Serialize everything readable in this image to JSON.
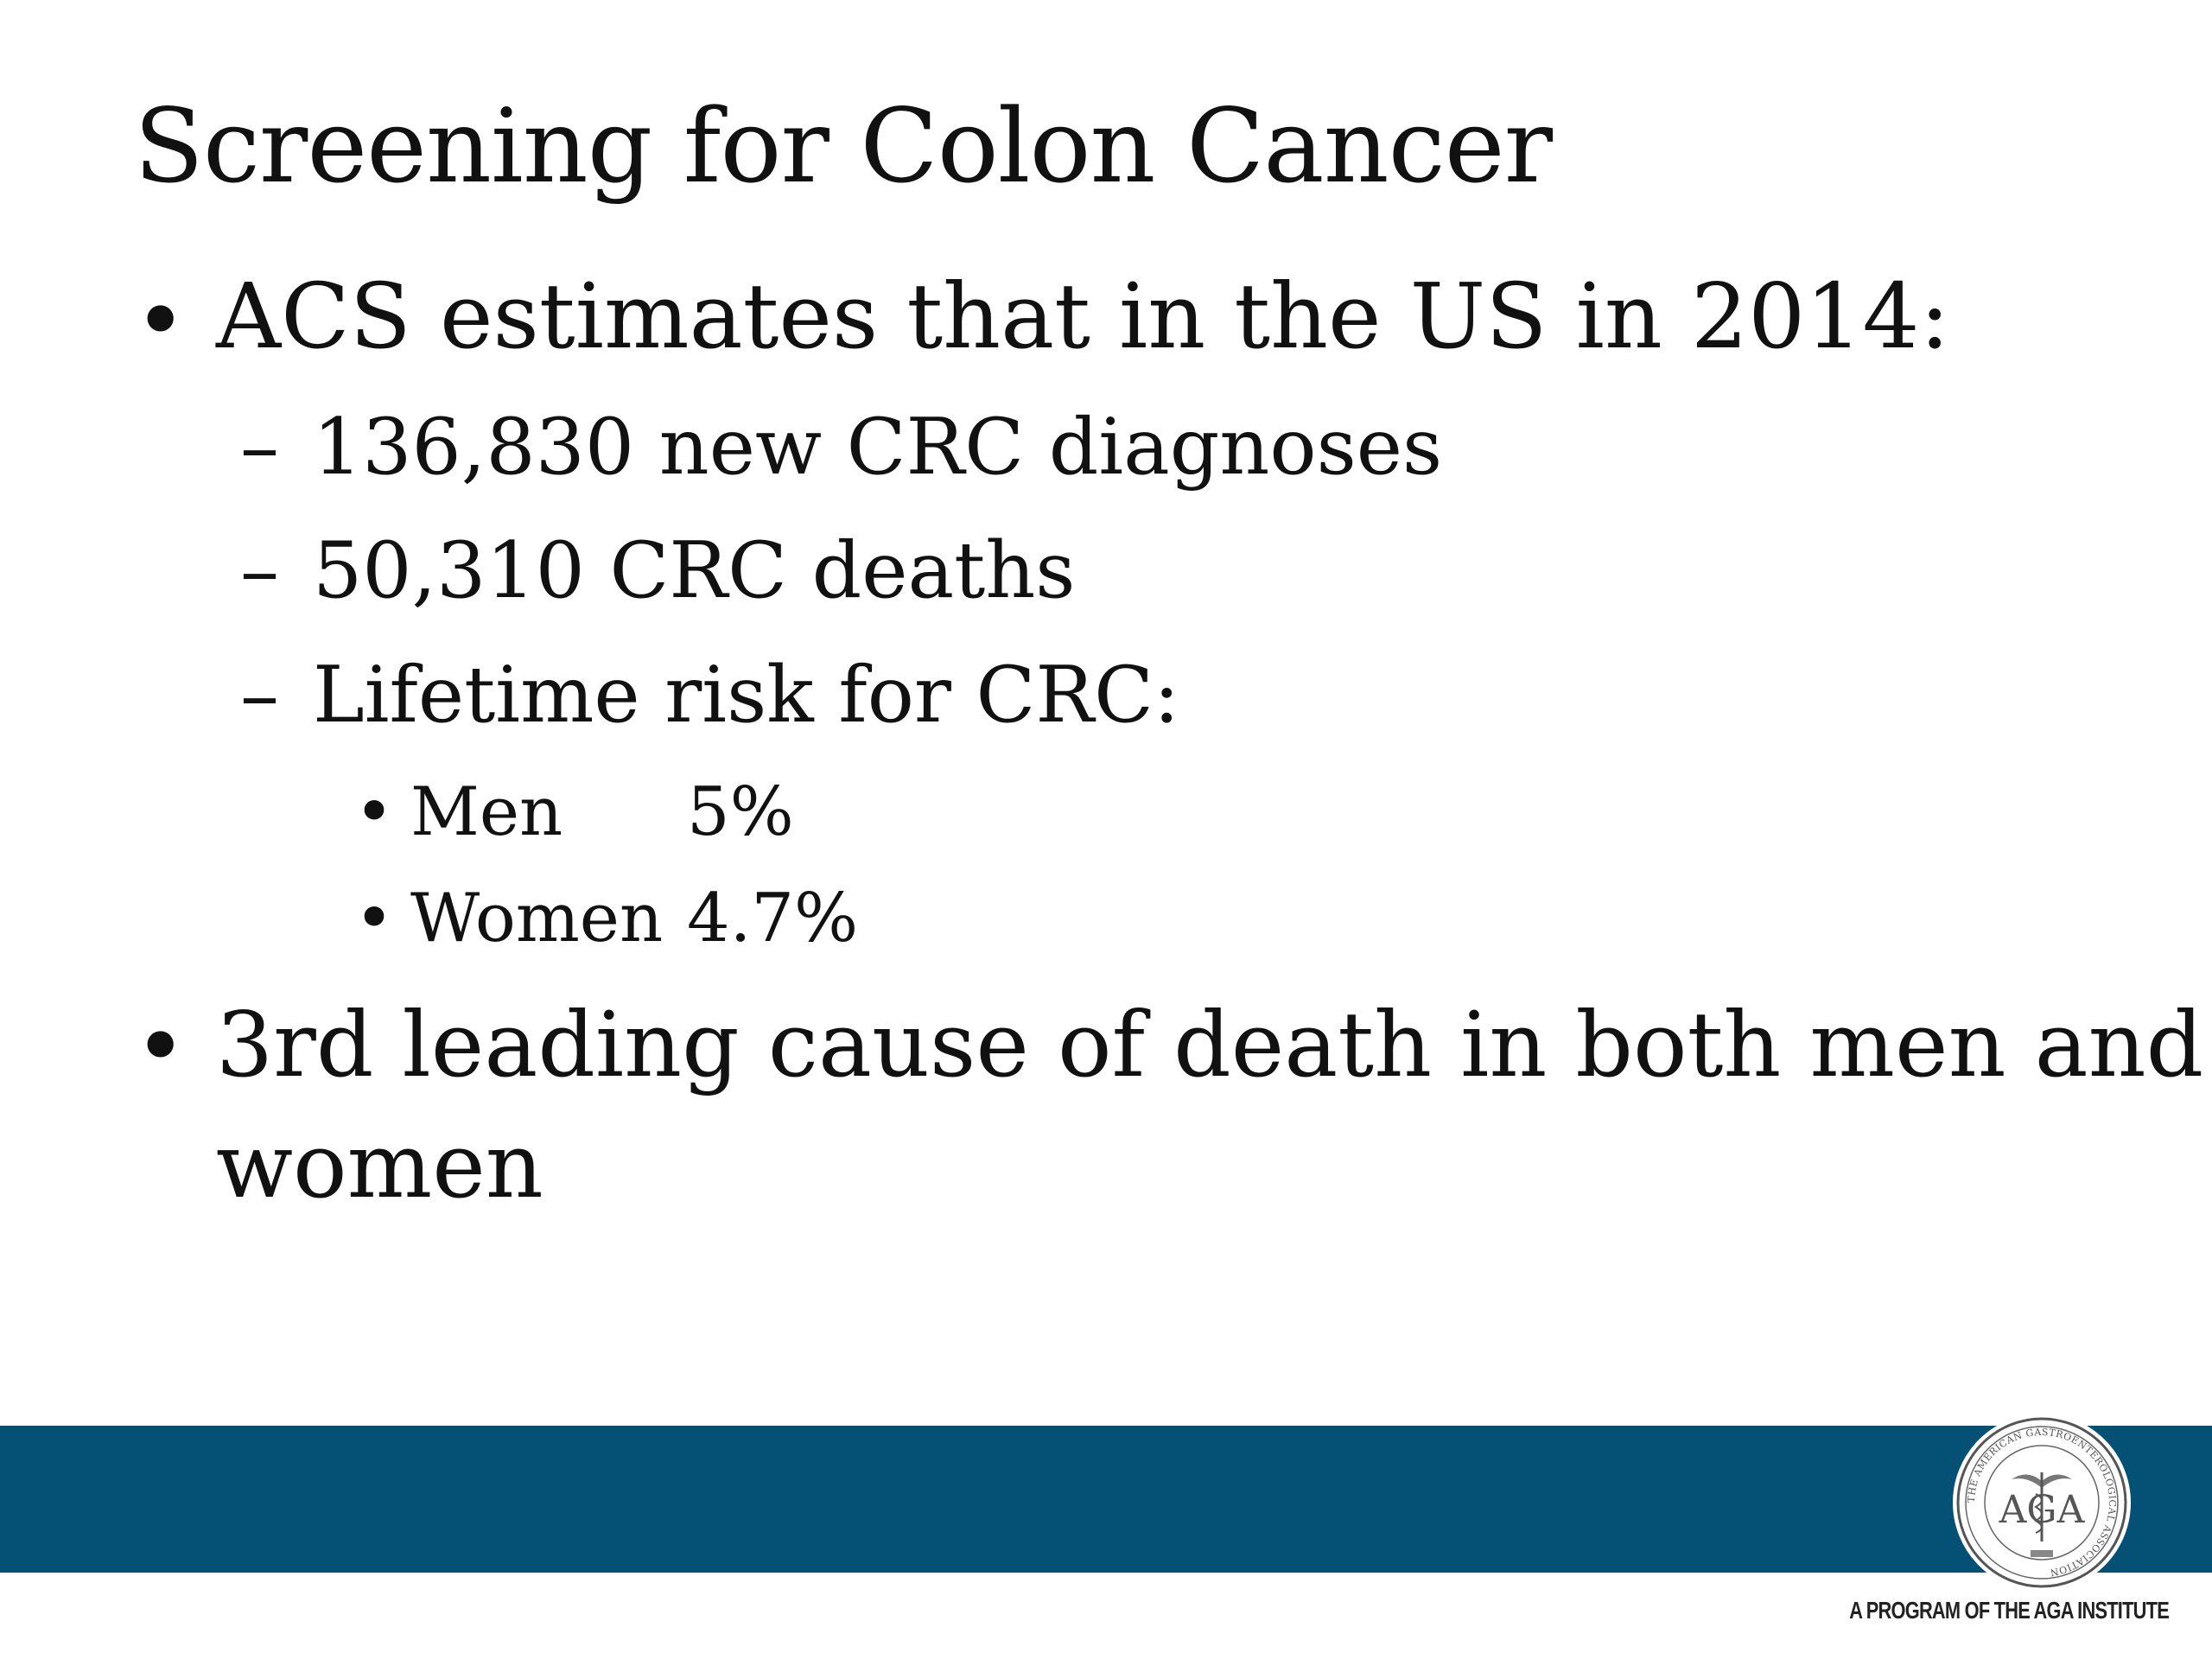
{
  "slide": {
    "title": "Screening for Colon Cancer",
    "bullets": [
      {
        "text": "ACS estimates that in the US in 2014:",
        "sub": [
          {
            "text": "136,830 new CRC diagnoses"
          },
          {
            "text": "50,310 CRC deaths"
          },
          {
            "text": "Lifetime risk for CRC:",
            "sub": [
              {
                "label": "Men",
                "value": "5%"
              },
              {
                "label": "Women",
                "value": "4.7%"
              }
            ]
          }
        ]
      },
      {
        "text_line1": "3rd leading cause of death in both men and",
        "text_line2": "women"
      }
    ]
  },
  "footer": {
    "program_text": "A PROGRAM OF THE AGA INSTITUTE",
    "seal_letters": "AGA",
    "seal_ring_text": "THE AMERICAN GASTROENTEROLOGICAL ASSOCIATION",
    "bar_color": "#045175"
  },
  "markers": {
    "bullet": "•",
    "dash": "–"
  }
}
